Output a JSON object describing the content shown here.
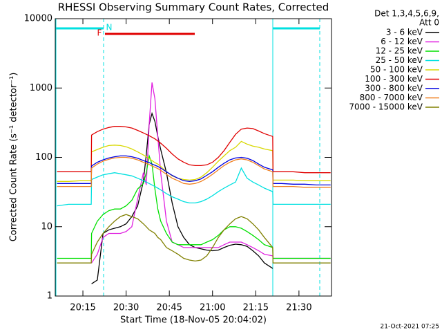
{
  "chart_data": {
    "type": "line",
    "title": "RHESSI Observing Summary Count Rates, Corrected",
    "y_label": "Corrected Count Rate (s⁻¹ detector⁻¹)",
    "x_label": "Start Time (18-Nov-05 20:04:02)",
    "legend_header": [
      "Det 1,3,4,5,6,9,",
      "Att 0"
    ],
    "footer": "21-Oct-2021 07:25",
    "flag_labels": [
      "F",
      "N"
    ],
    "log_y": true,
    "xlim": [
      5.4,
      101.3
    ],
    "xticks": [
      {
        "value": 15,
        "label": "20:15"
      },
      {
        "value": 30,
        "label": "20:30"
      },
      {
        "value": 45,
        "label": "20:45"
      },
      {
        "value": 60,
        "label": "21:00"
      },
      {
        "value": 75,
        "label": "21:15"
      },
      {
        "value": 90,
        "label": "21:30"
      }
    ],
    "ylim": [
      1,
      10000
    ],
    "yticks": [
      1,
      10,
      100,
      1000,
      10000
    ],
    "x": [
      6,
      10,
      14,
      17.9,
      18,
      20,
      22,
      24,
      26,
      28,
      30,
      32,
      34,
      36,
      37,
      38,
      39,
      40,
      41,
      42,
      44,
      46,
      48,
      50,
      52,
      54,
      56,
      58,
      60,
      62,
      64,
      66,
      68,
      70,
      72,
      74,
      76,
      78,
      80.9,
      81,
      84,
      88,
      92,
      96,
      101
    ],
    "series": [
      {
        "name": "3 - 6 keV",
        "color": "#000000",
        "values": [
          null,
          null,
          null,
          null,
          1.5,
          1.7,
          8,
          9,
          9.5,
          10,
          11,
          14,
          20,
          45,
          110,
          300,
          430,
          330,
          200,
          130,
          60,
          22,
          10,
          7,
          5.5,
          5,
          4.8,
          4.6,
          4.5,
          4.6,
          5,
          5.4,
          5.6,
          5.5,
          5.2,
          4.5,
          3.8,
          3,
          2.5,
          null,
          null,
          null,
          null,
          null,
          null
        ]
      },
      {
        "name": "6 - 12 keV",
        "color": "#e020e0",
        "values": [
          null,
          null,
          null,
          null,
          3,
          4,
          7,
          8,
          8,
          8,
          8.5,
          10,
          25,
          60,
          40,
          300,
          1200,
          700,
          200,
          60,
          12,
          6,
          5.5,
          5,
          5,
          5,
          5,
          5,
          5,
          5,
          5.5,
          6,
          6,
          6,
          5.5,
          5,
          4.5,
          4,
          3.8,
          3.5,
          3.5,
          3.5,
          3.5,
          3.5,
          3.5
        ]
      },
      {
        "name": "12 - 25 keV",
        "color": "#00e000",
        "values": [
          3.5,
          3.5,
          3.5,
          3.5,
          8,
          12,
          15,
          17,
          18,
          18,
          20,
          24,
          35,
          42,
          60,
          105,
          80,
          35,
          18,
          12,
          8,
          6,
          5.5,
          5.5,
          5.5,
          5.5,
          5.5,
          6,
          6.5,
          7.5,
          9,
          10,
          10,
          9.5,
          8.5,
          7.5,
          6.5,
          5.5,
          5,
          3.5,
          3.5,
          3.5,
          3.5,
          3.5,
          3.5
        ]
      },
      {
        "name": "25 - 50 keV",
        "color": "#00e0e0",
        "values": [
          20,
          21,
          21,
          21,
          48,
          52,
          56,
          58,
          60,
          58,
          56,
          54,
          50,
          46,
          44,
          42,
          40,
          38,
          36,
          34,
          30,
          27,
          25,
          23,
          22,
          22,
          23,
          25,
          28,
          32,
          36,
          40,
          44,
          70,
          50,
          44,
          40,
          36,
          32,
          21,
          21,
          21,
          21,
          21,
          21
        ]
      },
      {
        "name": "50 - 100 keV",
        "color": "#d8d800",
        "values": [
          45,
          45,
          46,
          46,
          120,
          130,
          140,
          148,
          150,
          148,
          142,
          132,
          120,
          108,
          102,
          96,
          90,
          84,
          80,
          74,
          62,
          54,
          50,
          48,
          47,
          48,
          52,
          60,
          72,
          88,
          105,
          125,
          140,
          170,
          155,
          145,
          140,
          132,
          125,
          47,
          47,
          47,
          46,
          46,
          46
        ]
      },
      {
        "name": "100 - 300 keV",
        "color": "#e00000",
        "values": [
          62,
          62,
          62,
          62,
          210,
          235,
          255,
          270,
          280,
          280,
          275,
          265,
          245,
          225,
          215,
          205,
          195,
          185,
          172,
          160,
          135,
          112,
          95,
          85,
          78,
          76,
          76,
          78,
          85,
          100,
          125,
          165,
          215,
          255,
          265,
          260,
          240,
          220,
          200,
          62,
          62,
          62,
          60,
          60,
          60
        ]
      },
      {
        "name": "300 - 800 keV",
        "color": "#0000e0",
        "values": [
          42,
          42,
          42,
          42,
          75,
          85,
          92,
          98,
          102,
          105,
          105,
          102,
          97,
          90,
          87,
          84,
          80,
          77,
          74,
          70,
          62,
          55,
          50,
          46,
          45,
          46,
          49,
          55,
          62,
          72,
          82,
          92,
          98,
          100,
          97,
          90,
          80,
          72,
          66,
          42,
          42,
          41,
          41,
          40,
          40
        ]
      },
      {
        "name": "800 - 7000 keV",
        "color": "#f08020",
        "values": [
          38,
          38,
          38,
          38,
          70,
          80,
          88,
          94,
          98,
          100,
          100,
          97,
          92,
          85,
          82,
          79,
          75,
          72,
          69,
          65,
          57,
          50,
          46,
          42,
          41,
          42,
          45,
          50,
          57,
          66,
          76,
          85,
          92,
          95,
          92,
          85,
          76,
          68,
          62,
          38,
          38,
          38,
          37,
          37,
          37
        ]
      },
      {
        "name": "7000 - 15000 keV",
        "color": "#808000",
        "values": [
          3,
          3,
          3,
          3,
          4,
          6,
          8,
          10,
          12,
          14,
          15,
          14,
          13,
          11,
          10,
          9,
          8.5,
          8,
          7,
          6.5,
          5,
          4.5,
          4,
          3.5,
          3.3,
          3.2,
          3.3,
          3.8,
          5,
          7,
          9,
          11,
          13,
          14,
          13,
          11,
          9,
          7,
          5,
          3,
          3,
          3,
          3,
          3,
          3
        ]
      }
    ]
  }
}
